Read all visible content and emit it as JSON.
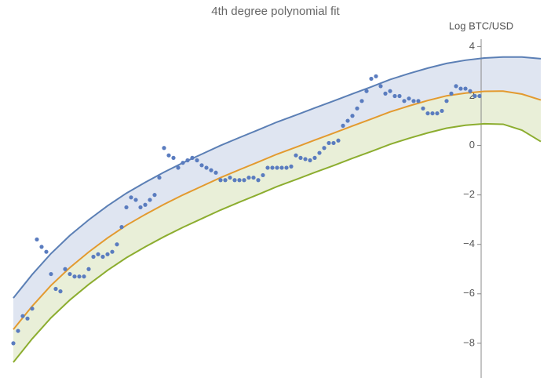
{
  "chart_data": {
    "type": "line",
    "title": "4th degree polynomial fit",
    "y_label": "Log BTC/USD",
    "ylim": [
      -9.4,
      4.3
    ],
    "yticks": [
      4,
      2,
      0,
      {
        "value": -2,
        "label": "−2"
      },
      {
        "value": -4,
        "label": "−4"
      },
      {
        "value": -6,
        "label": "−6"
      },
      {
        "value": -8,
        "label": "−8"
      }
    ],
    "series": [
      {
        "type": "line",
        "color": "#5b7fb5",
        "values": [
          -6.17,
          -5.22,
          -4.37,
          -3.64,
          -3.01,
          -2.44,
          -1.93,
          -1.49,
          -1.08,
          -0.7,
          -0.35,
          0,
          0.32,
          0.63,
          0.95,
          1.23,
          1.52,
          1.8,
          2.09,
          2.37,
          2.67,
          2.91,
          3.13,
          3.32,
          3.45,
          3.54,
          3.58,
          3.58,
          3.51
        ]
      },
      {
        "type": "line",
        "color": "#e39a2f",
        "values": [
          -7.44,
          -6.5,
          -5.66,
          -4.94,
          -4.31,
          -3.74,
          -3.23,
          -2.79,
          -2.38,
          -2.0,
          -1.65,
          -1.3,
          -0.98,
          -0.67,
          -0.35,
          -0.07,
          0.22,
          0.5,
          0.79,
          1.07,
          1.36,
          1.6,
          1.82,
          2.01,
          2.12,
          2.19,
          2.2,
          2.08,
          1.84
        ]
      },
      {
        "type": "line",
        "color": "#8cad2f",
        "values": [
          -8.77,
          -7.82,
          -6.97,
          -6.25,
          -5.62,
          -5.05,
          -4.54,
          -4.1,
          -3.69,
          -3.31,
          -2.96,
          -2.61,
          -2.29,
          -1.98,
          -1.66,
          -1.38,
          -1.09,
          -0.81,
          -0.52,
          -0.24,
          0.05,
          0.29,
          0.51,
          0.7,
          0.82,
          0.88,
          0.86,
          0.62,
          0.16
        ]
      },
      {
        "type": "scatter",
        "color": "#5a7cbf",
        "values": [
          -8.0,
          -7.5,
          -6.9,
          -7.0,
          -6.6,
          -3.8,
          -4.1,
          -4.3,
          -5.2,
          -5.8,
          -5.9,
          -5.0,
          -5.2,
          -5.3,
          -5.3,
          -5.3,
          -5.0,
          -4.5,
          -4.4,
          -4.5,
          -4.4,
          -4.3,
          -4.0,
          -3.3,
          -2.5,
          -2.1,
          -2.2,
          -2.5,
          -2.4,
          -2.2,
          -2.0,
          -1.3,
          -0.1,
          -0.4,
          -0.5,
          -0.9,
          -0.7,
          -0.6,
          -0.5,
          -0.6,
          -0.8,
          -0.9,
          -1.0,
          -1.1,
          -1.4,
          -1.4,
          -1.3,
          -1.4,
          -1.4,
          -1.4,
          -1.3,
          -1.3,
          -1.4,
          -1.2,
          -0.9,
          -0.9,
          -0.9,
          -0.9,
          -0.9,
          -0.85,
          -0.4,
          -0.5,
          -0.55,
          -0.6,
          -0.5,
          -0.3,
          -0.1,
          0.1,
          0.1,
          0.2,
          0.8,
          1.0,
          1.2,
          1.5,
          1.8,
          2.2,
          2.7,
          2.8,
          2.4,
          2.1,
          2.2,
          2.0,
          2.0,
          1.8,
          1.9,
          1.8,
          1.8,
          1.5,
          1.3,
          1.3,
          1.3,
          1.4,
          1.8,
          2.1,
          2.4,
          2.3,
          2.3,
          2.2,
          2.0,
          2.0
        ]
      }
    ],
    "band_colors": [
      "#dfe5f1",
      "#e9efd8"
    ]
  }
}
